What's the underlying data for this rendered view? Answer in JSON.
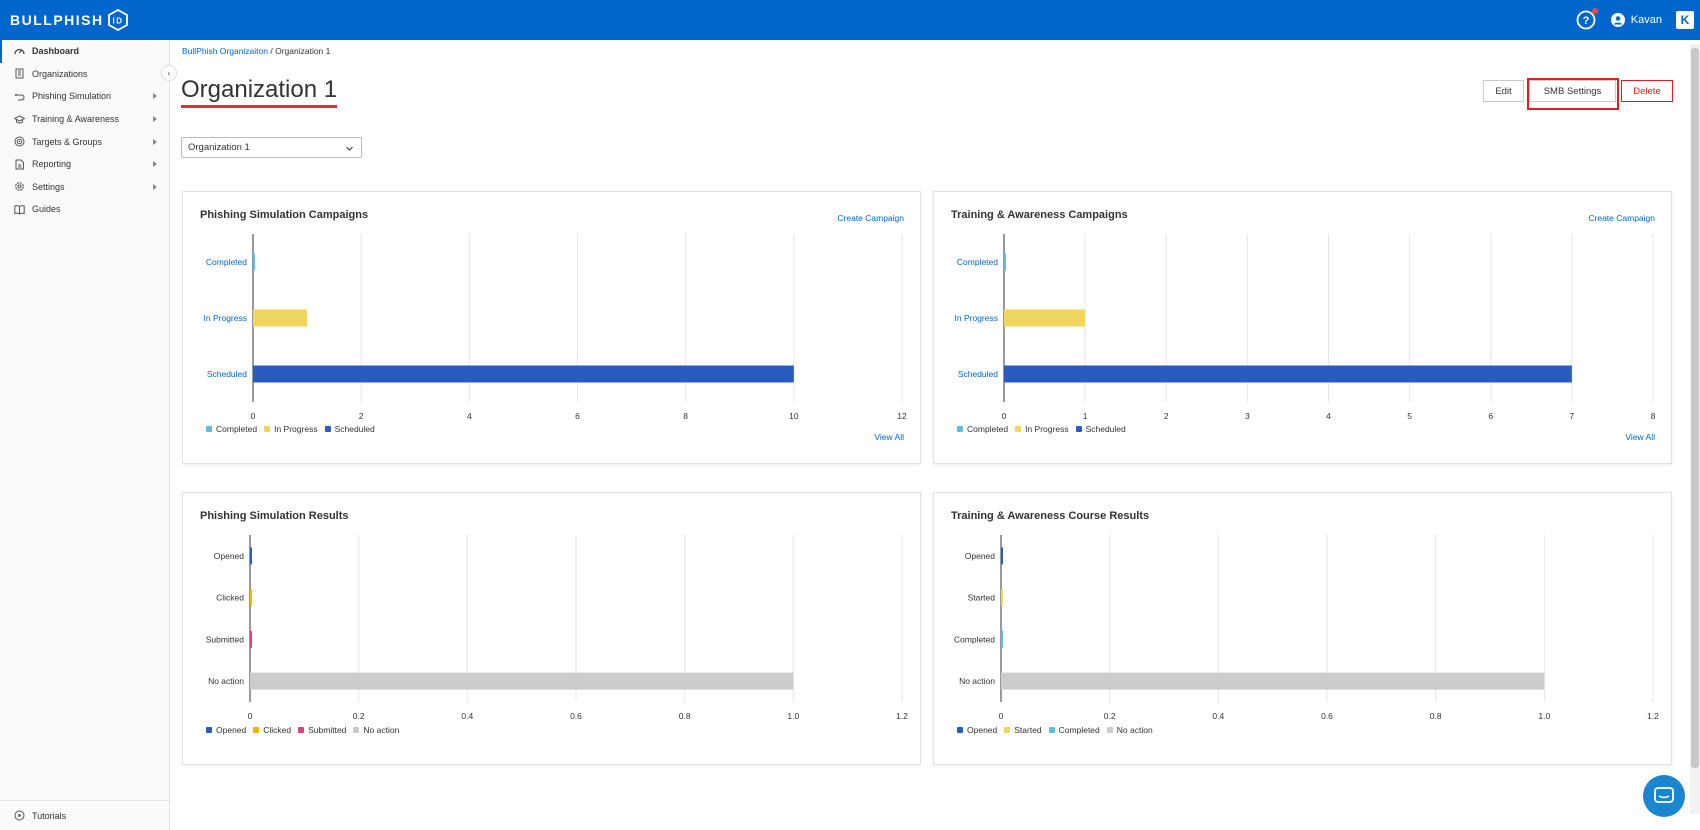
{
  "brand": {
    "name": "BULLPHISH",
    "badge": "ID"
  },
  "header": {
    "user_name": "Kavan",
    "k_logo": "K"
  },
  "sidebar": {
    "items": [
      {
        "label": "Dashboard",
        "icon": "dashboard-icon",
        "active": true
      },
      {
        "label": "Organizations",
        "icon": "building-icon"
      },
      {
        "label": "Phishing Simulation",
        "icon": "hook-icon",
        "caret": true
      },
      {
        "label": "Training & Awareness",
        "icon": "graduation-cap-icon",
        "caret": true
      },
      {
        "label": "Targets & Groups",
        "icon": "target-icon",
        "caret": true
      },
      {
        "label": "Reporting",
        "icon": "report-icon",
        "caret": true
      },
      {
        "label": "Settings",
        "icon": "gear-icon",
        "caret": true
      },
      {
        "label": "Guides",
        "icon": "book-icon"
      }
    ],
    "tutorials": "Tutorials"
  },
  "breadcrumb": {
    "parent": "BullPhish Organizaiton",
    "separator": " / ",
    "current": "Organization 1"
  },
  "page": {
    "title": "Organization 1",
    "edit_label": "Edit",
    "smb_label": "SMB Settings",
    "delete_label": "Delete",
    "org_select_value": "Organization 1"
  },
  "cards": {
    "phishing_campaigns": {
      "title": "Phishing Simulation Campaigns",
      "link": "Create Campaign",
      "view_all": "View All"
    },
    "training_campaigns": {
      "title": "Training & Awareness Campaigns",
      "link": "Create Campaign",
      "view_all": "View All"
    },
    "phishing_results": {
      "title": "Phishing Simulation Results"
    },
    "training_results": {
      "title": "Training & Awareness Course Results"
    }
  },
  "colors": {
    "brand": "#0066cc",
    "completed": "#5bc0de",
    "in_progress": "#f0d560",
    "scheduled": "#2a5bbf",
    "opened": "#2a5bbf",
    "clicked": "#f5b400",
    "submitted": "#e0407b",
    "started": "#f0d560",
    "no_action": "#cccccc"
  },
  "chart_data": [
    {
      "type": "bar",
      "orientation": "horizontal",
      "categories": [
        "Completed",
        "In Progress",
        "Scheduled"
      ],
      "values": [
        0,
        1,
        10
      ],
      "colors": [
        "#5bc0de",
        "#f0d560",
        "#2a5bbf"
      ],
      "xlim": [
        0,
        12
      ],
      "xticks": [
        "0",
        "2",
        "4",
        "6",
        "8",
        "10",
        "12"
      ],
      "legend": [
        "Completed",
        "In Progress",
        "Scheduled"
      ],
      "category_label_color": "#0066cc"
    },
    {
      "type": "bar",
      "orientation": "horizontal",
      "categories": [
        "Completed",
        "In Progress",
        "Scheduled"
      ],
      "values": [
        0,
        1,
        7
      ],
      "colors": [
        "#5bc0de",
        "#f0d560",
        "#2a5bbf"
      ],
      "xlim": [
        0,
        8
      ],
      "xticks": [
        "0",
        "1",
        "2",
        "3",
        "4",
        "5",
        "6",
        "7",
        "8"
      ],
      "legend": [
        "Completed",
        "In Progress",
        "Scheduled"
      ],
      "category_label_color": "#0066cc"
    },
    {
      "type": "bar",
      "orientation": "horizontal",
      "categories": [
        "Opened",
        "Clicked",
        "Submitted",
        "No action"
      ],
      "values": [
        0,
        0,
        0,
        1.0
      ],
      "colors": [
        "#2a5bbf",
        "#f5b400",
        "#e0407b",
        "#cccccc"
      ],
      "xlim": [
        0,
        1.2
      ],
      "xticks": [
        "0",
        "0.2",
        "0.4",
        "0.6",
        "0.8",
        "1.0",
        "1.2"
      ],
      "legend": [
        "Opened",
        "Clicked",
        "Submitted",
        "No action"
      ],
      "category_label_color": "#333333"
    },
    {
      "type": "bar",
      "orientation": "horizontal",
      "categories": [
        "Opened",
        "Started",
        "Completed",
        "No action"
      ],
      "values": [
        0,
        0,
        0,
        1.0
      ],
      "colors": [
        "#2a5bbf",
        "#f0d560",
        "#5bc0de",
        "#cccccc"
      ],
      "xlim": [
        0,
        1.2
      ],
      "xticks": [
        "0",
        "0.2",
        "0.4",
        "0.6",
        "0.8",
        "1.0",
        "1.2"
      ],
      "legend": [
        "Opened",
        "Started",
        "Completed",
        "No action"
      ],
      "category_label_color": "#333333"
    }
  ]
}
